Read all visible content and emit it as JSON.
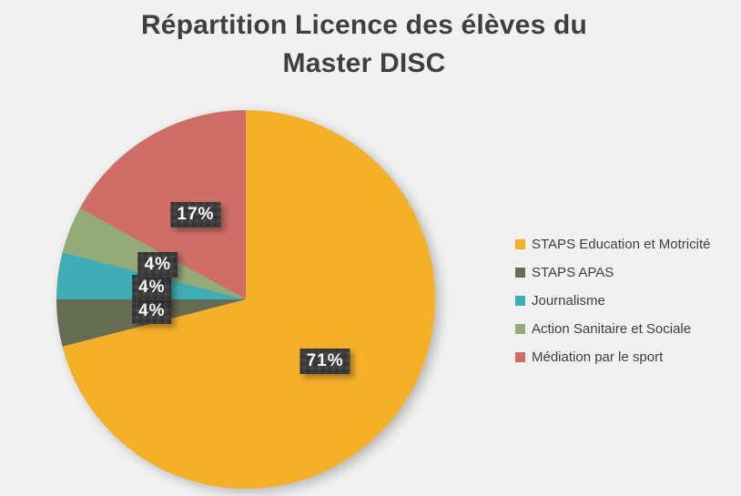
{
  "chart_data": {
    "type": "pie",
    "title": "Répartition Licence des élèves du Master DISC",
    "title_lines": [
      "Répartition Licence des élèves du",
      "Master DISC"
    ],
    "categories": [
      "STAPS Education et Motricité",
      "STAPS APAS",
      "Journalisme",
      "Action Sanitaire et Sociale",
      "Médiation par le sport"
    ],
    "values": [
      71,
      4,
      4,
      4,
      17
    ],
    "slice_labels": [
      "71%",
      "4%",
      "4%",
      "4%",
      "17%"
    ],
    "colors": [
      "#F5B02A",
      "#666B54",
      "#3FADB3",
      "#94AA78",
      "#CE6E66"
    ],
    "start_angle_deg": 0,
    "direction": "clockwise",
    "legend_position": "right",
    "styles": {
      "background": "#F1F1F1",
      "title_color": "#3F3F3F",
      "legend_text_color": "#3F3F3F",
      "label_box_color": "#3C3C3C",
      "label_text_color": "#FFFFFF"
    }
  }
}
